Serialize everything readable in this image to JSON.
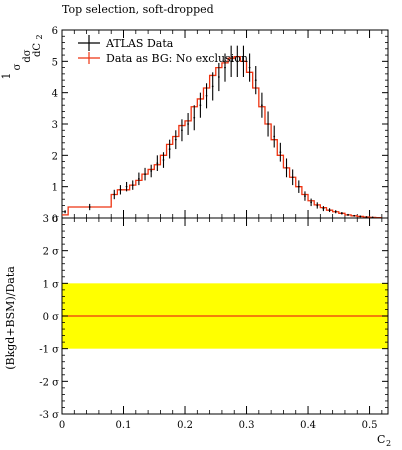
{
  "chart_data": [
    {
      "type": "line",
      "title": "Top selection, soft-dropped",
      "ylabel_parts": {
        "prefix": "1",
        "frac_top_1": "σ",
        "frac_bottom_1": "σ",
        "d_top": "dσ",
        "d_bottom": "dC",
        "d_bottom_sub": "2"
      },
      "ylim": [
        0,
        6
      ],
      "yticks": [
        0,
        1,
        2,
        3,
        4,
        5,
        6
      ],
      "xlim": [
        0,
        0.53
      ],
      "legend": {
        "position": "top-left",
        "entries": [
          "ATLAS Data",
          "Data as BG: No exclusion"
        ]
      },
      "series": [
        {
          "name": "ATLAS Data",
          "style": "points-with-errorbars",
          "color": "#000000",
          "x": [
            0.005,
            0.045,
            0.085,
            0.095,
            0.105,
            0.115,
            0.125,
            0.135,
            0.145,
            0.155,
            0.165,
            0.175,
            0.185,
            0.195,
            0.205,
            0.215,
            0.225,
            0.235,
            0.245,
            0.255,
            0.265,
            0.275,
            0.285,
            0.295,
            0.305,
            0.315,
            0.325,
            0.335,
            0.345,
            0.355,
            0.365,
            0.375,
            0.385,
            0.395,
            0.405,
            0.415,
            0.425,
            0.435,
            0.445,
            0.455,
            0.465,
            0.475,
            0.485,
            0.495,
            0.505
          ],
          "y": [
            0.2,
            0.35,
            0.75,
            0.9,
            1.0,
            1.05,
            1.25,
            1.4,
            1.5,
            1.75,
            1.85,
            2.2,
            2.5,
            2.8,
            3.0,
            3.2,
            3.6,
            3.9,
            4.2,
            4.5,
            4.8,
            5.0,
            5.0,
            5.0,
            4.8,
            4.4,
            3.6,
            3.0,
            2.6,
            2.1,
            1.6,
            1.3,
            1.0,
            0.7,
            0.5,
            0.4,
            0.3,
            0.25,
            0.2,
            0.15,
            0.1,
            0.07,
            0.05,
            0.03,
            0.02
          ],
          "err": [
            0.05,
            0.1,
            0.15,
            0.15,
            0.15,
            0.15,
            0.2,
            0.2,
            0.2,
            0.25,
            0.25,
            0.3,
            0.3,
            0.35,
            0.35,
            0.4,
            0.4,
            0.4,
            0.45,
            0.45,
            0.45,
            0.5,
            0.5,
            0.5,
            0.45,
            0.45,
            0.4,
            0.4,
            0.35,
            0.3,
            0.3,
            0.25,
            0.2,
            0.15,
            0.12,
            0.1,
            0.08,
            0.06,
            0.05,
            0.04,
            0.03,
            0.02,
            0.02,
            0.01,
            0.01
          ]
        },
        {
          "name": "Data as BG: No exclusion",
          "style": "step",
          "color": "#ee3311",
          "edges": [
            0.0,
            0.01,
            0.07,
            0.08,
            0.09,
            0.1,
            0.11,
            0.12,
            0.13,
            0.14,
            0.15,
            0.16,
            0.17,
            0.18,
            0.19,
            0.2,
            0.21,
            0.22,
            0.23,
            0.24,
            0.25,
            0.26,
            0.27,
            0.28,
            0.29,
            0.3,
            0.31,
            0.32,
            0.33,
            0.34,
            0.35,
            0.36,
            0.37,
            0.38,
            0.39,
            0.4,
            0.41,
            0.42,
            0.43,
            0.44,
            0.45,
            0.46,
            0.47,
            0.48,
            0.49,
            0.5,
            0.51,
            0.52
          ],
          "values": [
            0.1,
            0.35,
            0.35,
            0.75,
            0.9,
            0.9,
            1.05,
            1.2,
            1.4,
            1.55,
            1.7,
            2.0,
            2.35,
            2.6,
            2.95,
            3.1,
            3.55,
            3.8,
            4.15,
            4.55,
            4.8,
            4.95,
            5.1,
            5.15,
            5.0,
            4.65,
            4.15,
            3.55,
            3.0,
            2.5,
            2.0,
            1.6,
            1.3,
            1.0,
            0.75,
            0.55,
            0.42,
            0.33,
            0.25,
            0.2,
            0.15,
            0.1,
            0.07,
            0.05,
            0.03,
            0.02,
            0.01
          ]
        }
      ]
    },
    {
      "type": "line",
      "ylabel": "(Bkgd+BSM)/Data",
      "xlabel": "C",
      "xlabel_sub": "2",
      "ylim": [
        -3,
        3
      ],
      "ytick_labels": [
        "3 σ",
        "2 σ",
        "1 σ",
        "0 σ",
        "-1 σ",
        "-2 σ",
        "-3 σ"
      ],
      "yticks": [
        3,
        2,
        1,
        0,
        -1,
        -2,
        -3
      ],
      "xlim": [
        0,
        0.53
      ],
      "xticks": [
        0,
        0.1,
        0.2,
        0.3,
        0.4,
        0.5
      ],
      "xtick_labels": [
        "0",
        "0.1",
        "0.2",
        "0.3",
        "0.4",
        "0.5"
      ],
      "band": {
        "from": -1,
        "to": 1,
        "color": "#ffff00"
      },
      "line_value": 0,
      "line_color": "#ee3311"
    }
  ]
}
